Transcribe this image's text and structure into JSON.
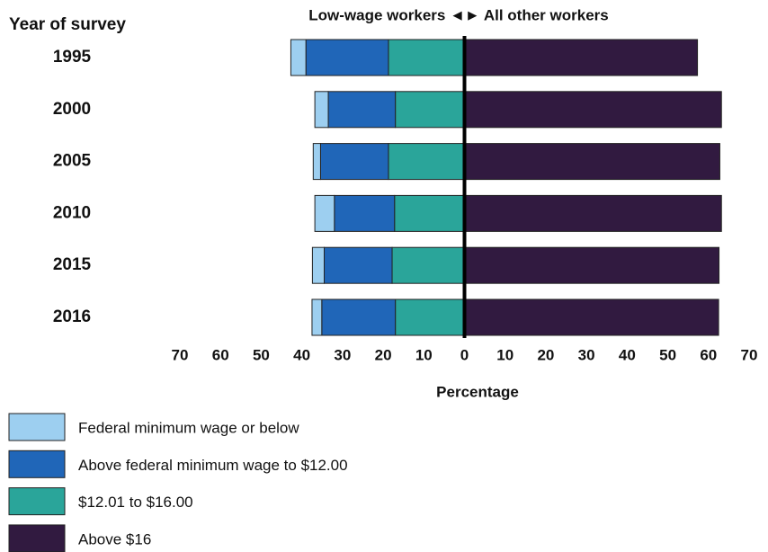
{
  "chart_data": {
    "type": "diverging-bar",
    "title": "Low-wage workers ◄► All other workers",
    "y_label": "Year of survey",
    "x_label": "Percentage",
    "categories": [
      "1995",
      "2000",
      "2005",
      "2010",
      "2015",
      "2016"
    ],
    "series": [
      {
        "name": "Federal minimum wage or below",
        "color": "#9dcff0",
        "side": "left",
        "values": [
          3.7,
          3.3,
          1.8,
          4.8,
          2.9,
          2.4
        ]
      },
      {
        "name": "Above federal minimum wage to $12.00",
        "color": "#2066b8",
        "side": "left",
        "values": [
          20.3,
          16.5,
          16.7,
          14.8,
          16.7,
          18.1
        ]
      },
      {
        "name": "$12.01 to $16.00",
        "color": "#2aa59a",
        "side": "left",
        "values": [
          18.7,
          17.0,
          18.7,
          17.2,
          17.8,
          17.0
        ]
      },
      {
        "name": "Above $16",
        "color": "#311a40",
        "side": "right",
        "values": [
          57.3,
          63.2,
          62.8,
          63.2,
          62.6,
          62.5
        ]
      }
    ],
    "xlim": [
      -70,
      70
    ],
    "xticks": [
      {
        "value": -70,
        "label": "70"
      },
      {
        "value": -60,
        "label": "60"
      },
      {
        "value": -50,
        "label": "50"
      },
      {
        "value": -40,
        "label": "40"
      },
      {
        "value": -30,
        "label": "30"
      },
      {
        "value": -20,
        "label": "20"
      },
      {
        "value": -10,
        "label": "10"
      },
      0,
      10,
      20,
      30,
      40,
      50,
      60,
      70
    ]
  }
}
